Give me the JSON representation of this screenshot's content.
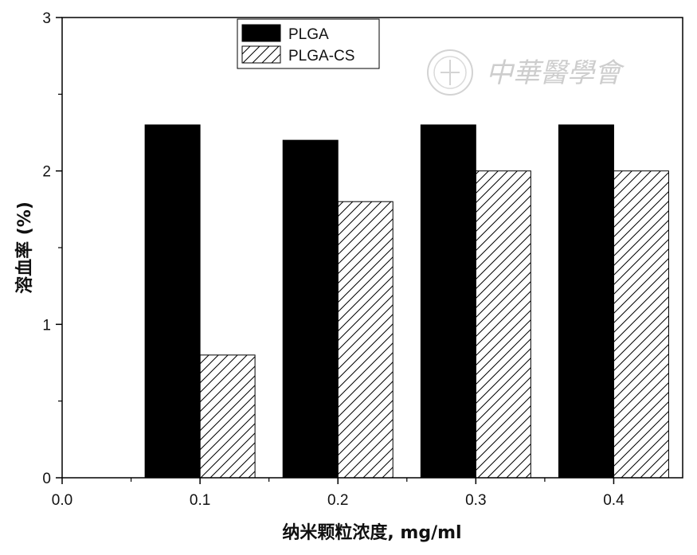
{
  "chart_data": {
    "type": "bar",
    "xlabel": "纳米颗粒浓度, mg/ml",
    "ylabel": "溶血率 (%)",
    "x_ticks": [
      "0.0",
      "0.1",
      "0.2",
      "0.3",
      "0.4"
    ],
    "x_tick_values": [
      0.0,
      0.1,
      0.2,
      0.3,
      0.4
    ],
    "y_ticks": [
      "0",
      "1",
      "2",
      "3"
    ],
    "y_tick_values": [
      0,
      1,
      2,
      3
    ],
    "xlim": [
      0.0,
      0.45
    ],
    "ylim": [
      0,
      3
    ],
    "grid": false,
    "legend_position": "top-left",
    "categories": [
      0.1,
      0.2,
      0.3,
      0.4
    ],
    "series": [
      {
        "name": "PLGA",
        "values": [
          2.3,
          2.2,
          2.3,
          2.3
        ],
        "fill": "#000000",
        "pattern": "solid"
      },
      {
        "name": "PLGA-CS",
        "values": [
          0.8,
          1.8,
          2.0,
          2.0
        ],
        "fill": "#ffffff",
        "pattern": "diagonal-hatch"
      }
    ]
  },
  "watermark": {
    "text": "中華醫學會",
    "icon": "society-seal-icon",
    "color": "#c8c8c8"
  }
}
